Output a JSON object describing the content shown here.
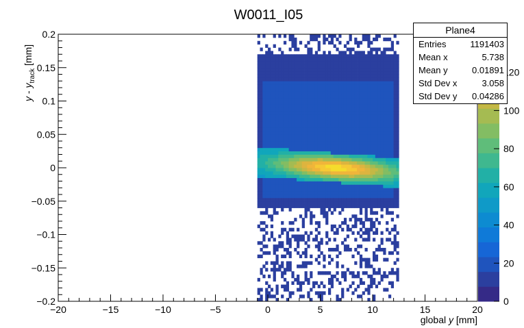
{
  "chart_data": {
    "type": "heatmap",
    "title": "W0011_I05",
    "xlabel_prefix": "global ",
    "xlabel_var": "y",
    "xlabel_unit": " [mm]",
    "ylabel_parts": {
      "y1": "y",
      "mid": " - ",
      "y2": "y",
      "sub": "track",
      "unit": " [mm]"
    },
    "xlim": [
      -20,
      20
    ],
    "ylim": [
      -0.2,
      0.2
    ],
    "x_ticks": [
      -20,
      -15,
      -10,
      -5,
      0,
      5,
      10,
      15,
      20
    ],
    "x_tick_labels": [
      "−20",
      "−15",
      "−10",
      "−5",
      "0",
      "5",
      "10",
      "15",
      "20"
    ],
    "y_ticks": [
      -0.2,
      -0.15,
      -0.1,
      -0.05,
      0,
      0.05,
      0.1,
      0.15,
      0.2
    ],
    "y_tick_labels": [
      "−0.2",
      "−0.15",
      "−0.1",
      "−0.05",
      "0",
      "0.05",
      "0.1",
      "0.15",
      "0.2"
    ],
    "colorbar": {
      "range": [
        0,
        140
      ],
      "ticks": [
        0,
        20,
        40,
        60,
        80,
        100,
        120
      ],
      "tick_labels": [
        "0",
        "20",
        "40",
        "60",
        "80",
        "100",
        "120"
      ],
      "colors": [
        "#352a87",
        "#2b3f9f",
        "#1f54bd",
        "#1666d6",
        "#0f7ad8",
        "#0d8bd1",
        "#0f9ac8",
        "#11a6bb",
        "#22b0a6",
        "#3fb88f",
        "#5fbd7a",
        "#83bd63",
        "#a5bb52",
        "#c4b845",
        "#ddb43f",
        "#f0b53a",
        "#f6c935",
        "#f5dc2c"
      ]
    },
    "density_regions": [
      {
        "x_range": [
          -1,
          12.5
        ],
        "y_range": [
          -0.2,
          0.2
        ],
        "level": "sparse"
      },
      {
        "x_range": [
          -1,
          12.5
        ],
        "y_range": [
          -0.06,
          0.17
        ],
        "level": "dense"
      },
      {
        "x_range": [
          -1,
          12.5
        ],
        "y_range": [
          -0.03,
          0.03
        ],
        "level": "peak",
        "peak_x": 6.5,
        "peak_y": 0.0,
        "tilt": -0.0012
      }
    ]
  },
  "stats": {
    "name": "Plane4",
    "rows": [
      {
        "label": "Entries",
        "value": "1191403"
      },
      {
        "label": "Mean x",
        "value": "5.738"
      },
      {
        "label": "Mean y",
        "value": "0.01891"
      },
      {
        "label": "Std Dev x",
        "value": "3.058"
      },
      {
        "label": "Std Dev y",
        "value": "0.04286"
      }
    ]
  }
}
